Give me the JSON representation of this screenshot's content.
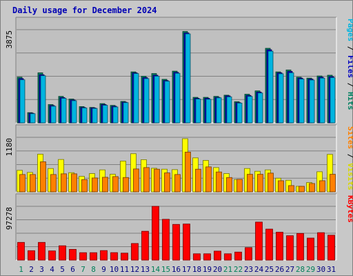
{
  "chart_data": {
    "type": "bar",
    "title": "Daily usage for December 2024",
    "categories": [
      "1",
      "2",
      "3",
      "4",
      "5",
      "6",
      "7",
      "8",
      "9",
      "10",
      "11",
      "12",
      "13",
      "14",
      "15",
      "16",
      "17",
      "18",
      "19",
      "20",
      "21",
      "22",
      "23",
      "24",
      "25",
      "26",
      "27",
      "28",
      "29",
      "30",
      "31"
    ],
    "weekend_days": [
      "1",
      "7",
      "8",
      "14",
      "15",
      "21",
      "22",
      "28",
      "29"
    ],
    "panels": [
      {
        "id": "hits",
        "ymax_label": "3875",
        "ymax": 3875,
        "right_label_parts": [
          {
            "text": "Pages",
            "color": "#00b4e0"
          },
          {
            "text": " / ",
            "color": "#000000"
          },
          {
            "text": "Files",
            "color": "#0000c0"
          },
          {
            "text": " / ",
            "color": "#000000"
          },
          {
            "text": "Hits",
            "color": "#008060"
          }
        ],
        "series": [
          {
            "name": "Hits",
            "color": "#008060",
            "values": [
              1900,
              425,
              2080,
              760,
              1100,
              990,
              675,
              640,
              800,
              725,
              890,
              2120,
              1940,
              2050,
              1810,
              2150,
              3800,
              1060,
              1060,
              1100,
              1150,
              880,
              1190,
              1330,
              3100,
              2120,
              2200,
              1900,
              1860,
              1950,
              1980
            ]
          },
          {
            "name": "Files",
            "color": "#0000c0",
            "values": [
              1840,
              400,
              2000,
              720,
              1050,
              950,
              640,
              620,
              760,
              690,
              860,
              2080,
              1880,
              1980,
              1760,
              2100,
              3740,
              1020,
              1020,
              1060,
              1120,
              840,
              1140,
              1280,
              3040,
              2080,
              2140,
              1860,
              1820,
              1900,
              1920
            ]
          },
          {
            "name": "Pages",
            "color": "#00b4e0",
            "values": [
              1790,
              380,
              1960,
              690,
              1020,
              920,
              620,
              600,
              730,
              660,
              840,
              2050,
              1840,
              1940,
              1730,
              2060,
              3700,
              990,
              980,
              1040,
              1080,
              820,
              1100,
              1240,
              2980,
              2040,
              2080,
              1820,
              1780,
              1860,
              1880
            ]
          }
        ]
      },
      {
        "id": "visits",
        "ymax_label": "1180",
        "ymax": 1180,
        "right_label_parts": [
          {
            "text": "Sites",
            "color": "#ff8000"
          },
          {
            "text": " / ",
            "color": "#000000"
          },
          {
            "text": "Visits",
            "color": "#d8d800"
          }
        ],
        "series": [
          {
            "name": "Visits",
            "color": "#ffff00",
            "values": [
              465,
              420,
              815,
              505,
              700,
              415,
              335,
              395,
              475,
              380,
              665,
              825,
              695,
              510,
              490,
              480,
              1150,
              735,
              680,
              525,
              395,
              265,
              505,
              445,
              475,
              295,
              250,
              120,
              200,
              435,
              810
            ]
          },
          {
            "name": "Sites",
            "color": "#ff8000",
            "values": [
              375,
              375,
              650,
              375,
              390,
              390,
              265,
              300,
              315,
              330,
              310,
              495,
              525,
              490,
              410,
              375,
              860,
              490,
              540,
              430,
              310,
              270,
              380,
              380,
              405,
              240,
              135,
              120,
              180,
              240,
              380
            ]
          }
        ]
      },
      {
        "id": "kbytes",
        "ymax_label": "97278",
        "ymax": 97278,
        "right_label_parts": [
          {
            "text": "KBytes",
            "color": "#ff0000"
          }
        ],
        "series": [
          {
            "name": "KBytes",
            "color": "#ff0000",
            "values": [
              32100,
              17100,
              32100,
              16700,
              26000,
              19500,
              13500,
              13500,
              17300,
              13600,
              12700,
              30100,
              52200,
              97278,
              73800,
              64600,
              65300,
              11500,
              11500,
              16300,
              11500,
              14600,
              22700,
              68800,
              56100,
              50500,
              44200,
              48300,
              39900,
              49700,
              45100
            ]
          }
        ]
      }
    ]
  }
}
